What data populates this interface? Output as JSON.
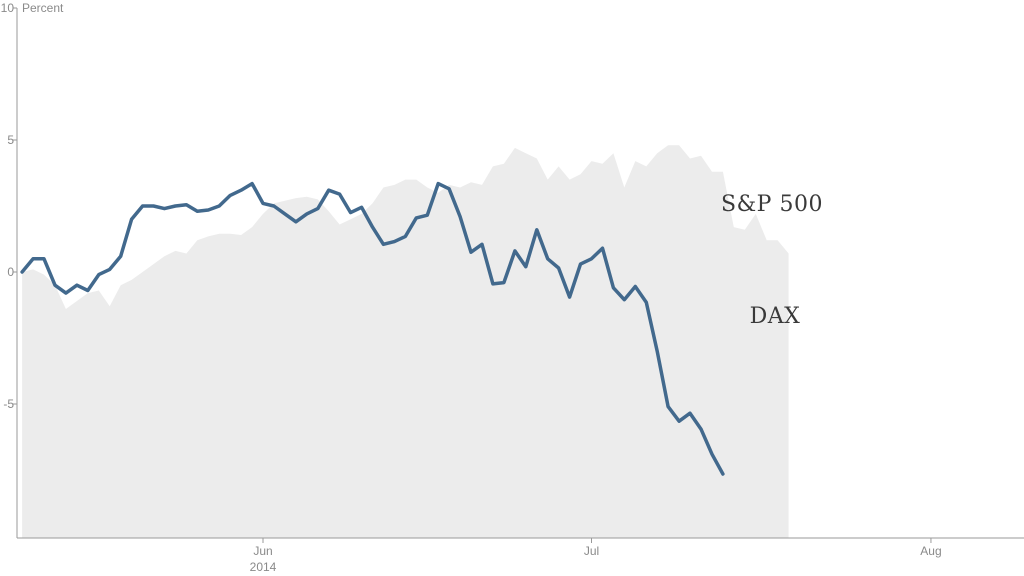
{
  "chart_data": {
    "type": "area",
    "title": "",
    "xlabel": "",
    "ylabel": "Percent",
    "ylim": [
      -10,
      10
    ],
    "y_ticks": [
      {
        "value": 10,
        "label": "10"
      },
      {
        "value": 5,
        "label": "5"
      },
      {
        "value": 0,
        "label": "0"
      },
      {
        "value": -5,
        "label": "-5"
      }
    ],
    "x_ticks": [
      {
        "day": 0,
        "label": "Jun",
        "sublabel": "2014"
      },
      {
        "day": 30,
        "label": "Jul",
        "sublabel": ""
      },
      {
        "day": 61,
        "label": "Aug",
        "sublabel": ""
      }
    ],
    "x_domain": [
      -22,
      67
    ],
    "series": [
      {
        "name": "S&P 500",
        "style": "area",
        "color": "#ececec",
        "points": [
          [
            -22,
            0.0
          ],
          [
            -21,
            0.1
          ],
          [
            -20,
            -0.1
          ],
          [
            -19,
            -0.5
          ],
          [
            -18,
            -1.4
          ],
          [
            -17,
            -1.1
          ],
          [
            -16,
            -0.8
          ],
          [
            -15,
            -0.7
          ],
          [
            -14,
            -1.3
          ],
          [
            -13,
            -0.5
          ],
          [
            -12,
            -0.3
          ],
          [
            -11,
            0.0
          ],
          [
            -10,
            0.3
          ],
          [
            -9,
            0.6
          ],
          [
            -8,
            0.8
          ],
          [
            -7,
            0.7
          ],
          [
            -6,
            1.2
          ],
          [
            -5,
            1.35
          ],
          [
            -4,
            1.45
          ],
          [
            -3,
            1.45
          ],
          [
            -2,
            1.4
          ],
          [
            -1,
            1.7
          ],
          [
            0,
            2.2
          ],
          [
            1,
            2.6
          ],
          [
            2,
            2.7
          ],
          [
            3,
            2.8
          ],
          [
            4,
            2.85
          ],
          [
            5,
            2.75
          ],
          [
            6,
            2.3
          ],
          [
            7,
            1.8
          ],
          [
            8,
            2.0
          ],
          [
            9,
            2.2
          ],
          [
            10,
            2.6
          ],
          [
            11,
            3.2
          ],
          [
            12,
            3.3
          ],
          [
            13,
            3.5
          ],
          [
            14,
            3.5
          ],
          [
            15,
            3.2
          ],
          [
            16,
            3.0
          ],
          [
            17,
            3.3
          ],
          [
            18,
            3.2
          ],
          [
            19,
            3.4
          ],
          [
            20,
            3.3
          ],
          [
            21,
            4.0
          ],
          [
            22,
            4.1
          ],
          [
            23,
            4.7
          ],
          [
            24,
            4.5
          ],
          [
            25,
            4.3
          ],
          [
            26,
            3.5
          ],
          [
            27,
            4.0
          ],
          [
            28,
            3.5
          ],
          [
            29,
            3.7
          ],
          [
            30,
            4.2
          ],
          [
            31,
            4.1
          ],
          [
            32,
            4.5
          ],
          [
            33,
            3.2
          ],
          [
            34,
            4.2
          ],
          [
            35,
            4.0
          ],
          [
            36,
            4.5
          ],
          [
            37,
            4.8
          ],
          [
            38,
            4.8
          ],
          [
            39,
            4.3
          ],
          [
            40,
            4.4
          ],
          [
            41,
            3.8
          ],
          [
            42,
            3.8
          ],
          [
            43,
            1.7
          ],
          [
            44,
            1.6
          ],
          [
            45,
            2.2
          ],
          [
            46,
            1.2
          ],
          [
            47,
            1.2
          ],
          [
            48,
            0.7
          ]
        ]
      },
      {
        "name": "DAX",
        "style": "line",
        "color": "#42698d",
        "points": [
          [
            -22,
            0.0
          ],
          [
            -21,
            0.5
          ],
          [
            -20,
            0.5
          ],
          [
            -19,
            -0.5
          ],
          [
            -18,
            -0.8
          ],
          [
            -17,
            -0.5
          ],
          [
            -16,
            -0.7
          ],
          [
            -15,
            -0.1
          ],
          [
            -14,
            0.1
          ],
          [
            -13,
            0.6
          ],
          [
            -12,
            2.0
          ],
          [
            -11,
            2.5
          ],
          [
            -10,
            2.5
          ],
          [
            -9,
            2.4
          ],
          [
            -8,
            2.5
          ],
          [
            -7,
            2.55
          ],
          [
            -6,
            2.3
          ],
          [
            -5,
            2.35
          ],
          [
            -4,
            2.5
          ],
          [
            -3,
            2.9
          ],
          [
            -2,
            3.1
          ],
          [
            -1,
            3.35
          ],
          [
            0,
            2.6
          ],
          [
            1,
            2.5
          ],
          [
            2,
            2.2
          ],
          [
            3,
            1.9
          ],
          [
            4,
            2.2
          ],
          [
            5,
            2.4
          ],
          [
            6,
            3.1
          ],
          [
            7,
            2.95
          ],
          [
            8,
            2.25
          ],
          [
            9,
            2.45
          ],
          [
            10,
            1.7
          ],
          [
            11,
            1.05
          ],
          [
            12,
            1.15
          ],
          [
            13,
            1.35
          ],
          [
            14,
            2.05
          ],
          [
            15,
            2.15
          ],
          [
            16,
            3.35
          ],
          [
            17,
            3.15
          ],
          [
            18,
            2.1
          ],
          [
            19,
            0.75
          ],
          [
            20,
            1.05
          ],
          [
            21,
            -0.45
          ],
          [
            22,
            -0.4
          ],
          [
            23,
            0.8
          ],
          [
            24,
            0.2
          ],
          [
            25,
            1.6
          ],
          [
            26,
            0.5
          ],
          [
            27,
            0.15
          ],
          [
            28,
            -0.95
          ],
          [
            29,
            0.3
          ],
          [
            30,
            0.5
          ],
          [
            31,
            0.9
          ],
          [
            32,
            -0.6
          ],
          [
            33,
            -1.05
          ],
          [
            34,
            -0.55
          ],
          [
            35,
            -1.15
          ],
          [
            36,
            -3.0
          ],
          [
            37,
            -5.1
          ],
          [
            38,
            -5.65
          ],
          [
            39,
            -5.35
          ],
          [
            40,
            -5.95
          ],
          [
            41,
            -6.9
          ],
          [
            42,
            -7.65
          ]
        ]
      }
    ],
    "annotations": [
      {
        "text": "S&P 500",
        "series": 0
      },
      {
        "text": "DAX",
        "series": 1
      }
    ],
    "grid": false,
    "legend": "none"
  }
}
